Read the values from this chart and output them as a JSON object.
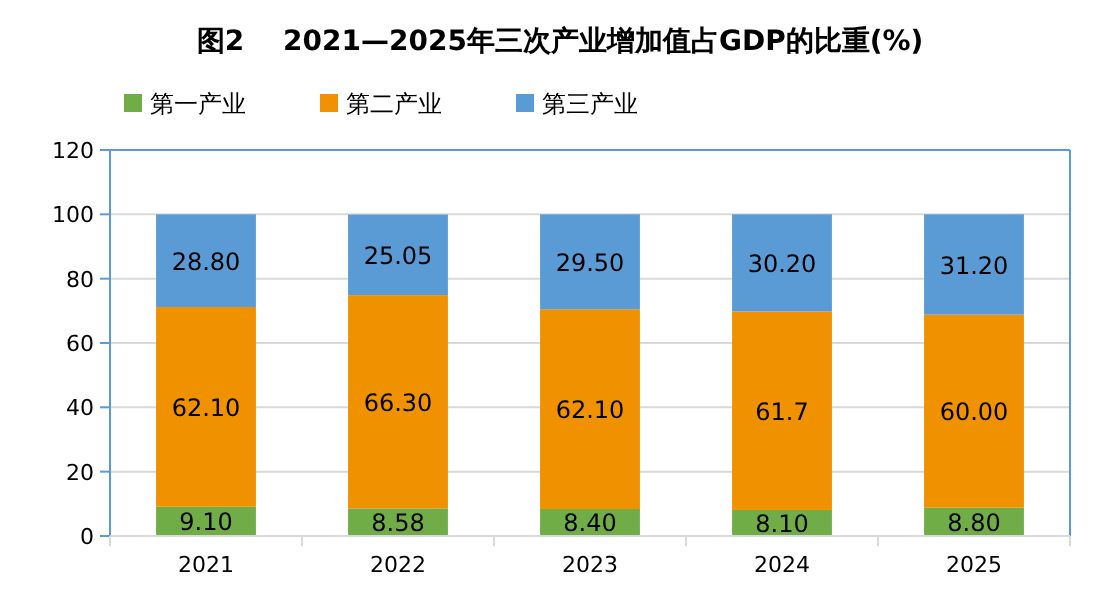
{
  "chart_data": {
    "type": "bar",
    "title": "图2    2021—2025年三次产业增加值占GDP的比重(%)",
    "categories": [
      "2021",
      "2022",
      "2023",
      "2024",
      "2025"
    ],
    "stacked": true,
    "series": [
      {
        "name": "第一产业",
        "color": "#70ad47",
        "values": [
          9.1,
          8.58,
          8.4,
          8.1,
          8.8
        ],
        "value_labels": [
          "9.10",
          "8.58",
          "8.40",
          "8.10",
          "8.80"
        ]
      },
      {
        "name": "第二产业",
        "color": "#f09100",
        "values": [
          62.1,
          66.3,
          62.1,
          61.7,
          60.0
        ],
        "value_labels": [
          "62.10",
          "66.30",
          "62.10",
          "61.7",
          "60.00"
        ]
      },
      {
        "name": "第三产业",
        "color": "#5b9bd5",
        "values": [
          28.8,
          25.05,
          29.5,
          30.2,
          31.2
        ],
        "value_labels": [
          "28.80",
          "25.05",
          "29.50",
          "30.20",
          "31.20"
        ]
      }
    ],
    "ylim": [
      0,
      120
    ],
    "yticks": [
      0,
      20,
      40,
      60,
      80,
      100,
      120
    ],
    "grid": "y",
    "legend": "top left"
  }
}
